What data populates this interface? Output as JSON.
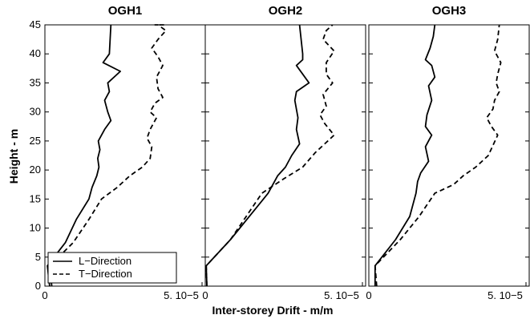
{
  "chart_data": {
    "type": "line",
    "xlabel": "Inter-storey Drift - m/m",
    "ylabel": "Height - m",
    "xlim": [
      0,
      5e-05
    ],
    "ylim": [
      0,
      45
    ],
    "x_tick_labels": [
      "0",
      "5. 10−5"
    ],
    "y_ticks": [
      0,
      5,
      10,
      15,
      20,
      25,
      30,
      35,
      40,
      45
    ],
    "legend": {
      "placement": "bottom-left",
      "entries": [
        "L−Direction",
        "T−Direction"
      ],
      "panel": 0
    },
    "series_styles": [
      {
        "name": "L−Direction",
        "dash": "solid",
        "color": "#000000"
      },
      {
        "name": "T−Direction",
        "dash": "dashed",
        "color": "#000000"
      }
    ],
    "panels": [
      {
        "title": "OGH1",
        "series": [
          {
            "name": "L−Direction",
            "x": [
              1.5e-06,
              8e-07,
              6.5e-06,
              1e-05,
              1.4e-05,
              1.5e-05,
              1.65e-05,
              1.72e-05,
              1.68e-05,
              1.75e-05,
              1.7e-05,
              1.9e-05,
              2.1e-05,
              2e-05,
              1.9e-05,
              2.05e-05,
              2e-05,
              2.4e-05,
              1.85e-05,
              2.05e-05,
              2.1e-05
            ],
            "y": [
              0,
              3.5,
              7.5,
              11.5,
              15,
              17,
              19,
              20.5,
              22,
              23.5,
              25,
              27,
              28.5,
              30,
              32,
              33.5,
              35,
              37,
              38.5,
              40,
              45
            ]
          },
          {
            "name": "T−Direction",
            "x": [
              2.2e-06,
              1.5e-06,
              9e-06,
              1.4e-05,
              1.8e-05,
              2.3e-05,
              2.7e-05,
              3.1e-05,
              3.35e-05,
              3.4e-05,
              3.25e-05,
              3.35e-05,
              3.55e-05,
              3.35e-05,
              3.5e-05,
              3.75e-05,
              3.6e-05,
              3.55e-05,
              3.75e-05,
              3.6e-05,
              3.4e-05,
              3.6e-05,
              3.85e-05,
              3.6e-05,
              3.5e-05,
              3.8e-05
            ],
            "y": [
              0,
              3.5,
              7.5,
              11.5,
              15,
              17,
              19,
              20.5,
              22,
              24,
              25.5,
              27,
              29,
              30,
              31.5,
              32.5,
              34,
              36,
              38,
              39.5,
              41,
              42.5,
              44,
              45,
              45,
              45
            ]
          }
        ]
      },
      {
        "title": "OGH2",
        "series": [
          {
            "name": "L−Direction",
            "x": [
              5e-07,
              3e-07,
              8e-06,
              1.4e-05,
              2e-05,
              2.3e-05,
              2.55e-05,
              2.75e-05,
              3e-05,
              2.9e-05,
              2.95e-05,
              2.85e-05,
              2.9e-05,
              3.3e-05,
              2.9e-05,
              3.1e-05,
              3.1e-05,
              3e-05
            ],
            "y": [
              0,
              3.5,
              8,
              12,
              16,
              19,
              20.5,
              22.5,
              24.5,
              27,
              29,
              32,
              33.5,
              35,
              38,
              39,
              40,
              45
            ]
          },
          {
            "name": "T−Direction",
            "x": [
              5e-07,
              3e-07,
              8e-06,
              1.3e-05,
              1.8e-05,
              2.5e-05,
              3.1e-05,
              3.5e-05,
              4.1e-05,
              3.8e-05,
              3.65e-05,
              3.85e-05,
              3.75e-05,
              4.05e-05,
              3.85e-05,
              3.85e-05,
              4.1e-05,
              3.75e-05,
              3.85e-05,
              4.05e-05
            ],
            "y": [
              0,
              3.5,
              8,
              12,
              16,
              18.5,
              20.5,
              23,
              26,
              28,
              29.5,
              31,
              33,
              35,
              36.5,
              38.5,
              40.5,
              42.5,
              44,
              45
            ]
          }
        ]
      },
      {
        "title": "OGH3",
        "series": [
          {
            "name": "L−Direction",
            "x": [
              2e-06,
              2e-06,
              8.5e-06,
              1.3e-05,
              1.5e-05,
              1.55e-05,
              1.65e-05,
              1.9e-05,
              1.8e-05,
              2e-05,
              1.8e-05,
              1.85e-05,
              2e-05,
              1.9e-05,
              2.1e-05,
              2e-05,
              1.8e-05,
              1.95e-05,
              2.05e-05,
              2.1e-05
            ],
            "y": [
              0,
              3.5,
              8,
              12,
              16,
              18,
              19.5,
              21.5,
              24,
              26,
              27.5,
              29.5,
              32,
              34.5,
              36,
              38,
              39,
              41,
              43,
              45
            ]
          },
          {
            "name": "T−Direction",
            "x": [
              2.5e-06,
              2e-06,
              1e-05,
              1.6e-05,
              2.1e-05,
              2.7e-05,
              3e-05,
              3.4e-05,
              3.8e-05,
              4.1e-05,
              3.9e-05,
              3.75e-05,
              3.95e-05,
              4e-05,
              4.15e-05,
              4.05e-05,
              4.1e-05,
              4.2e-05,
              4e-05,
              4.1e-05,
              4.15e-05
            ],
            "y": [
              0,
              3.5,
              8,
              12,
              16,
              17.5,
              19,
              20.5,
              22.5,
              26,
              27.5,
              29,
              30.5,
              32,
              33.5,
              35,
              36.5,
              38.5,
              40.5,
              42.5,
              45
            ]
          }
        ]
      }
    ]
  }
}
